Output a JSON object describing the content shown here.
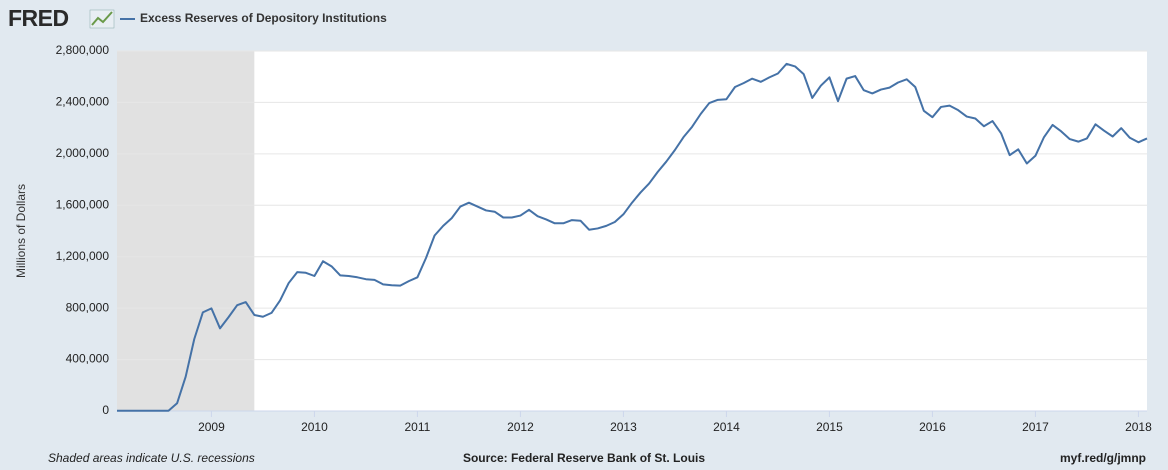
{
  "chart_data": {
    "type": "line",
    "logo": "FRED",
    "title": "Excess Reserves of Depository Institutions",
    "ylabel": "Millions of Dollars",
    "note": "Shaded areas indicate U.S. recessions",
    "source": "Source: Federal Reserve Bank of St. Louis",
    "link": "myf.red/g/jmnp",
    "grid": true,
    "recessions": [
      [
        "2007-12",
        "2009-06"
      ]
    ],
    "recession_color": "#e1e1e1",
    "xlim": [
      "2008-02",
      "2018-02"
    ],
    "xticks": [
      {
        "value": "2009-01",
        "label": "2009"
      },
      {
        "value": "2010-01",
        "label": "2010"
      },
      {
        "value": "2011-01",
        "label": "2011"
      },
      {
        "value": "2012-01",
        "label": "2012"
      },
      {
        "value": "2013-01",
        "label": "2013"
      },
      {
        "value": "2014-01",
        "label": "2014"
      },
      {
        "value": "2015-01",
        "label": "2015"
      },
      {
        "value": "2016-01",
        "label": "2016"
      },
      {
        "value": "2017-01",
        "label": "2017"
      },
      {
        "value": "2018-01",
        "label": "2018"
      }
    ],
    "ylim": [
      0,
      2800000
    ],
    "yticks": [
      0,
      {
        "value": 400000,
        "label": "400,000"
      },
      {
        "value": 800000,
        "label": "800,000"
      },
      {
        "value": 1200000,
        "label": "1,200,000"
      },
      {
        "value": 1600000,
        "label": "1,600,000"
      },
      {
        "value": 2000000,
        "label": "2,000,000"
      },
      {
        "value": 2400000,
        "label": "2,400,000"
      },
      {
        "value": 2800000,
        "label": "2,800,000"
      }
    ],
    "x": [
      "2008-02",
      "2008-03",
      "2008-04",
      "2008-05",
      "2008-06",
      "2008-07",
      "2008-08",
      "2008-09",
      "2008-10",
      "2008-11",
      "2008-12",
      "2009-01",
      "2009-02",
      "2009-03",
      "2009-04",
      "2009-05",
      "2009-06",
      "2009-07",
      "2009-08",
      "2009-09",
      "2009-10",
      "2009-11",
      "2009-12",
      "2010-01",
      "2010-02",
      "2010-03",
      "2010-04",
      "2010-05",
      "2010-06",
      "2010-07",
      "2010-08",
      "2010-09",
      "2010-10",
      "2010-11",
      "2010-12",
      "2011-01",
      "2011-02",
      "2011-03",
      "2011-04",
      "2011-05",
      "2011-06",
      "2011-07",
      "2011-08",
      "2011-09",
      "2011-10",
      "2011-11",
      "2011-12",
      "2012-01",
      "2012-02",
      "2012-03",
      "2012-04",
      "2012-05",
      "2012-06",
      "2012-07",
      "2012-08",
      "2012-09",
      "2012-10",
      "2012-11",
      "2012-12",
      "2013-01",
      "2013-02",
      "2013-03",
      "2013-04",
      "2013-05",
      "2013-06",
      "2013-07",
      "2013-08",
      "2013-09",
      "2013-10",
      "2013-11",
      "2013-12",
      "2014-01",
      "2014-02",
      "2014-03",
      "2014-04",
      "2014-05",
      "2014-06",
      "2014-07",
      "2014-08",
      "2014-09",
      "2014-10",
      "2014-11",
      "2014-12",
      "2015-01",
      "2015-02",
      "2015-03",
      "2015-04",
      "2015-05",
      "2015-06",
      "2015-07",
      "2015-08",
      "2015-09",
      "2015-10",
      "2015-11",
      "2015-12",
      "2016-01",
      "2016-02",
      "2016-03",
      "2016-04",
      "2016-05",
      "2016-06",
      "2016-07",
      "2016-08",
      "2016-09",
      "2016-10",
      "2016-11",
      "2016-12",
      "2017-01",
      "2017-02",
      "2017-03",
      "2017-04",
      "2017-05",
      "2017-06",
      "2017-07",
      "2017-08",
      "2017-09",
      "2017-10",
      "2017-11",
      "2017-12",
      "2018-01",
      "2018-02"
    ],
    "series": [
      {
        "name": "Excess Reserves of Depository Institutions",
        "color": "#4572a7",
        "values": [
          1800,
          1700,
          1500,
          1900,
          1800,
          1900,
          2000,
          60000,
          267000,
          559000,
          767000,
          798000,
          643000,
          730000,
          823000,
          847000,
          747000,
          733000,
          763000,
          860000,
          995000,
          1080000,
          1075000,
          1050000,
          1165000,
          1125000,
          1055000,
          1050000,
          1040000,
          1025000,
          1020000,
          985000,
          978000,
          975000,
          1010000,
          1040000,
          1190000,
          1365000,
          1440000,
          1500000,
          1590000,
          1620000,
          1590000,
          1560000,
          1550000,
          1505000,
          1505000,
          1520000,
          1565000,
          1515000,
          1490000,
          1460000,
          1460000,
          1485000,
          1480000,
          1410000,
          1420000,
          1440000,
          1470000,
          1530000,
          1620000,
          1700000,
          1770000,
          1860000,
          1940000,
          2030000,
          2130000,
          2210000,
          2310000,
          2395000,
          2420000,
          2425000,
          2520000,
          2550000,
          2585000,
          2560000,
          2595000,
          2625000,
          2700000,
          2680000,
          2620000,
          2435000,
          2530000,
          2595000,
          2410000,
          2585000,
          2605000,
          2495000,
          2470000,
          2500000,
          2515000,
          2555000,
          2580000,
          2520000,
          2335000,
          2285000,
          2365000,
          2375000,
          2340000,
          2290000,
          2275000,
          2215000,
          2255000,
          2160000,
          1990000,
          2035000,
          1925000,
          1985000,
          2130000,
          2225000,
          2175000,
          2115000,
          2095000,
          2120000,
          2230000,
          2180000,
          2135000,
          2200000,
          2125000,
          2090000,
          2120000
        ]
      }
    ]
  }
}
